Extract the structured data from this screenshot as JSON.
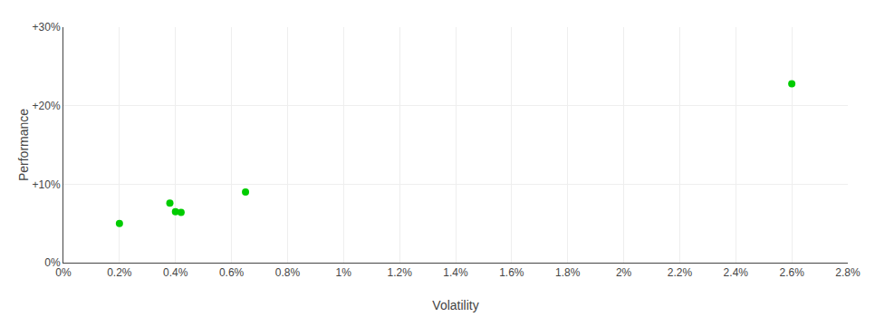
{
  "chart_data": {
    "type": "scatter",
    "x": [
      0.002,
      0.0038,
      0.004,
      0.0042,
      0.0065,
      0.026
    ],
    "values": [
      0.05,
      0.076,
      0.065,
      0.064,
      0.09,
      0.228
    ],
    "color": "#00cc00",
    "marker": "circle",
    "xlabel": "Volatility",
    "ylabel": "Performance",
    "xlim": [
      0.0,
      0.028
    ],
    "ylim": [
      0.0,
      0.3
    ],
    "xticks": [
      {
        "value": 0.0,
        "label": "0%"
      },
      {
        "value": 0.002,
        "label": "0.2%"
      },
      {
        "value": 0.004,
        "label": "0.4%"
      },
      {
        "value": 0.006,
        "label": "0.6%"
      },
      {
        "value": 0.008,
        "label": "0.8%"
      },
      {
        "value": 0.01,
        "label": "1%"
      },
      {
        "value": 0.012,
        "label": "1.2%"
      },
      {
        "value": 0.014,
        "label": "1.4%"
      },
      {
        "value": 0.016,
        "label": "1.6%"
      },
      {
        "value": 0.018,
        "label": "1.8%"
      },
      {
        "value": 0.02,
        "label": "2%"
      },
      {
        "value": 0.022,
        "label": "2.2%"
      },
      {
        "value": 0.024,
        "label": "2.4%"
      },
      {
        "value": 0.026,
        "label": "2.6%"
      },
      {
        "value": 0.028,
        "label": "2.8%"
      }
    ],
    "yticks": [
      {
        "value": 0.0,
        "label": "0%"
      },
      {
        "value": 0.1,
        "label": "+10%"
      },
      {
        "value": 0.2,
        "label": "+20%"
      },
      {
        "value": 0.3,
        "label": "+30%"
      }
    ],
    "grid": true
  }
}
